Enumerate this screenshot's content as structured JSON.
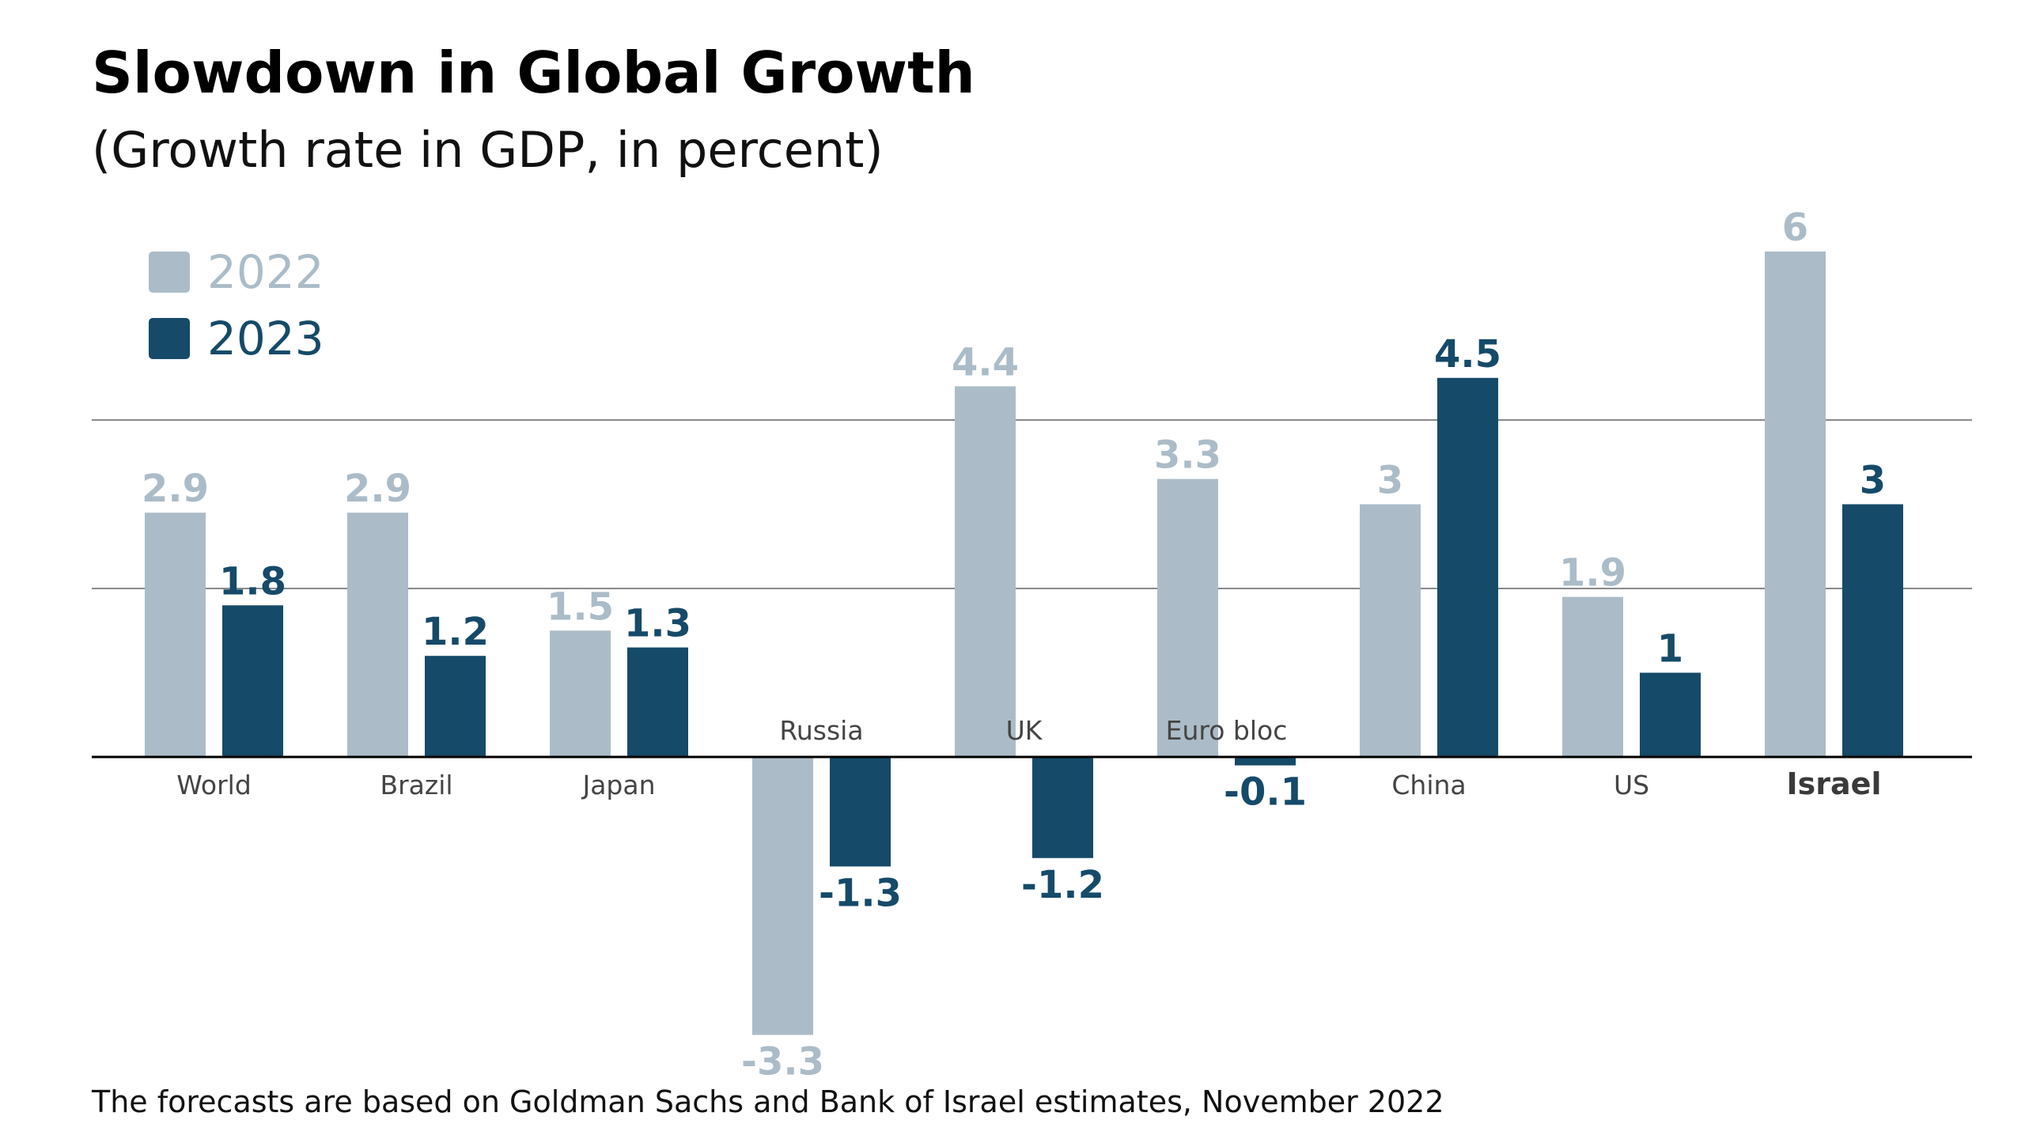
{
  "colors": {
    "series_2022": "#abbcc8",
    "series_2023": "#154a69",
    "gridline": "#8a8a8a",
    "axis": "#000000"
  },
  "chart_data": {
    "type": "bar",
    "title": "Slowdown in Global Growth",
    "subtitle": "(Growth rate in GDP, in percent)",
    "xlabel": "",
    "ylabel": "",
    "grid": true,
    "legend_position": "top-left",
    "categories": [
      "World",
      "Brazil",
      "Japan",
      "Russia",
      "UK",
      "Euro bloc",
      "China",
      "US",
      "Israel"
    ],
    "highlight_category": "Israel",
    "series": [
      {
        "name": "2022",
        "values": [
          2.9,
          2.9,
          1.5,
          -3.3,
          4.4,
          3.3,
          3,
          1.9,
          6
        ],
        "labels": [
          "2.9",
          "2.9",
          "1.5",
          "-3.3",
          "4.4",
          "3.3",
          "3",
          "1.9",
          "6"
        ]
      },
      {
        "name": "2023",
        "values": [
          1.8,
          1.2,
          1.3,
          -1.3,
          -1.2,
          -0.1,
          4.5,
          1,
          3
        ],
        "labels": [
          "1.8",
          "1.2",
          "1.3",
          "-1.3",
          "-1.2",
          "-0.1",
          "4.5",
          "1",
          "3"
        ]
      }
    ],
    "gridlines": [
      2,
      4
    ],
    "ylim": [
      -3.3,
      6
    ],
    "note": "The forecasts are based on Goldman Sachs and Bank of Israel estimates, November 2022"
  }
}
